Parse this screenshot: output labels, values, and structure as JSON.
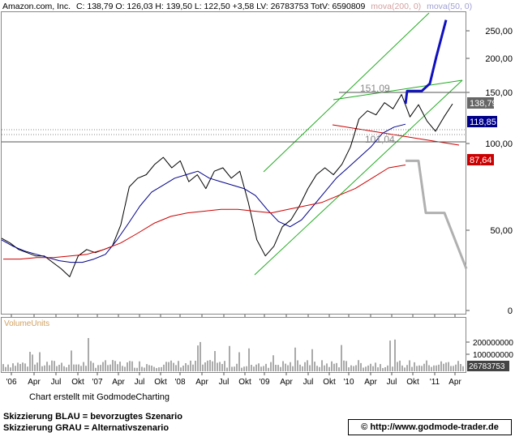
{
  "header": {
    "symbol": "Amazon.com, Inc.",
    "quote": "C: 138,79 O: 126,03 H: 139,50 L: 122,50 +3,58 LV: 26783753 TotV: 6590809",
    "ma1": "mova(200, 0)",
    "ma2": "mova(50, 0)"
  },
  "chart_data": {
    "type": "line",
    "price_axis_labels": [
      "250,00",
      "200,00",
      "150,00",
      "100,00",
      "50,00",
      "0"
    ],
    "x_labels": [
      "'06",
      "Apr",
      "Jul",
      "Okt",
      "'07",
      "Apr",
      "Jul",
      "Okt",
      "'08",
      "Apr",
      "Jul",
      "Okt",
      "'09",
      "Apr",
      "Jul",
      "Okt",
      "'10",
      "Apr",
      "Jul",
      "Okt",
      "'11",
      "Apr"
    ],
    "price_tags": {
      "last": "138,79",
      "ma50": "118,85",
      "ma200": "87,64"
    },
    "annotations": {
      "high": "151,09",
      "low": "101,04"
    },
    "series": [
      {
        "values": [
          45,
          42,
          38,
          36,
          34,
          34,
          30,
          26,
          21,
          34,
          38,
          36,
          38,
          40,
          53,
          75,
          80,
          82,
          88,
          92,
          86,
          90,
          78,
          82,
          74,
          84,
          86,
          80,
          84,
          66,
          44,
          34,
          40,
          52,
          56,
          64,
          74,
          82,
          86,
          82,
          88,
          98,
          124,
          132,
          128,
          140,
          134,
          148,
          126,
          138,
          122,
          112,
          126,
          138.79
        ]
      },
      {
        "name": "mova(50, 0)",
        "values": [
          44,
          40,
          37,
          35,
          33,
          31,
          30,
          30,
          32,
          35,
          44,
          54,
          64,
          72,
          76,
          80,
          82,
          84,
          80,
          78,
          76,
          74,
          70,
          62,
          55,
          52,
          56,
          64,
          72,
          80,
          86,
          92,
          98,
          110,
          116,
          118.85
        ]
      },
      {
        "name": "mova(200, 0)",
        "values": [
          32,
          32,
          33,
          33,
          34,
          35,
          38,
          42,
          48,
          54,
          58,
          60,
          61,
          62,
          62,
          61,
          60,
          62,
          64,
          66,
          70,
          74,
          80,
          86,
          87.64
        ]
      },
      {
        "values": [
          138.79,
          152,
          152,
          163,
          203,
          271
        ]
      },
      {
        "values": [
          90,
          90,
          60,
          60,
          26
        ]
      }
    ],
    "volume": {
      "label": "VolumeUnits",
      "axis_labels": [
        "200000000",
        "100000000"
      ],
      "last": "26783753"
    }
  },
  "credit": "Chart erstellt mit GodmodeCharting",
  "legend": {
    "line1": "Skizzierung BLAU = bevorzugtes Szenario",
    "line2": "Skizzierung GRAU = Alternativszenario"
  },
  "brand": {
    "url": "© http://www.godmode-trader.de"
  },
  "colors": {
    "price": "#000000",
    "ma50": "#00008b",
    "ma200": "#cc0000",
    "channel": "#22aa22",
    "scenario_blue": "#1010c0",
    "scenario_gray": "#b0b0b0",
    "volume": "#555555"
  }
}
